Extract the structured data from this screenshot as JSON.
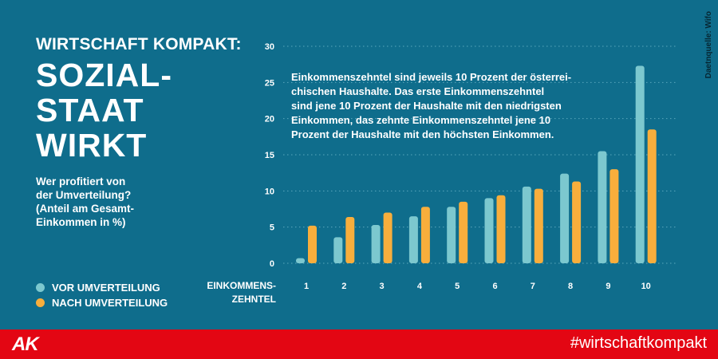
{
  "kicker": "WIRTSCHAFT KOMPAKT:",
  "headline": [
    "SOZIAL-",
    "STAAT",
    "WIRKT"
  ],
  "subtitle": [
    "Wer profitiert von",
    "der Umverteilung?",
    "(Anteil am Gesamt-",
    "Einkommen in %)"
  ],
  "source": "Daetnquelle: Wifo",
  "annotation": [
    "Einkommenszehntel sind jeweils 10 Prozent der österrei-",
    "chischen Haushalte. Das erste Einkommenszehntel",
    "sind jene 10 Prozent der Haushalte mit den niedrigsten",
    "Einkommen, das zehnte Einkommenszehntel jene 10",
    "Prozent der Haushalte mit den höchsten Einkommen."
  ],
  "logo": "AK",
  "hashtag": "#wirtschaftkompakt",
  "colors": {
    "background": "#0f6d8c",
    "before": "#7cc8cf",
    "after": "#f8ae3c",
    "footer": "#e30613",
    "gridline": "#5aa7bd"
  },
  "chart_data": {
    "type": "bar",
    "title": "Wer profitiert von der Umverteilung?",
    "xlabel": [
      "EINKOMMENS-",
      "ZEHNTEL"
    ],
    "ylabel": "Anteil am Gesamt-Einkommen in %",
    "categories": [
      "1",
      "2",
      "3",
      "4",
      "5",
      "6",
      "7",
      "8",
      "9",
      "10"
    ],
    "yticks": [
      0,
      5,
      10,
      15,
      20,
      25,
      30
    ],
    "ylim": [
      0,
      30
    ],
    "series": [
      {
        "name": "VOR UMVERTEILUNG",
        "color": "#7cc8cf",
        "values": [
          0.7,
          3.6,
          5.3,
          6.5,
          7.8,
          9.0,
          10.6,
          12.4,
          15.5,
          27.3
        ]
      },
      {
        "name": "NACH UMVERTEILUNG",
        "color": "#f8ae3c",
        "values": [
          5.2,
          6.4,
          7.0,
          7.8,
          8.5,
          9.4,
          10.3,
          11.3,
          13.0,
          18.5
        ]
      }
    ],
    "legend": "bottom-left"
  }
}
